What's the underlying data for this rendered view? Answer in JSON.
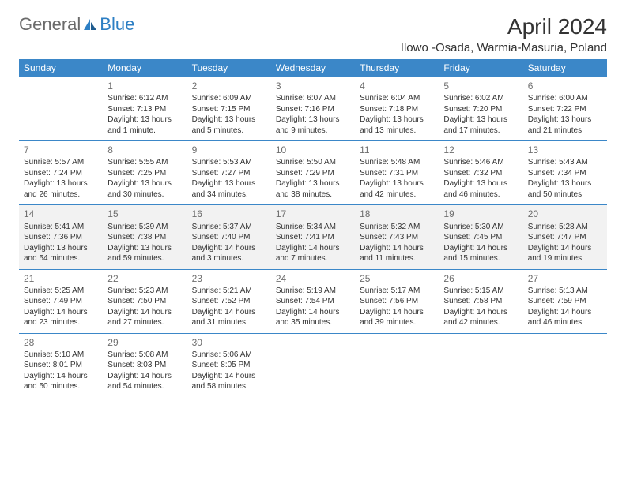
{
  "logo": {
    "general": "General",
    "blue": "Blue"
  },
  "title": "April 2024",
  "location": "Ilowo -Osada, Warmia-Masuria, Poland",
  "weekdays": [
    "Sunday",
    "Monday",
    "Tuesday",
    "Wednesday",
    "Thursday",
    "Friday",
    "Saturday"
  ],
  "colors": {
    "header_bg": "#3b87c8",
    "header_fg": "#ffffff",
    "logo_general": "#6b6b6b",
    "logo_blue": "#2d7fc4",
    "text": "#333333",
    "daynum": "#6e6e6e",
    "row_border": "#3b87c8",
    "shade": "#f2f2f2",
    "white": "#ffffff"
  },
  "weeks": [
    {
      "shaded": false,
      "days": [
        {
          "n": "",
          "lines": []
        },
        {
          "n": "1",
          "lines": [
            "Sunrise: 6:12 AM",
            "Sunset: 7:13 PM",
            "Daylight: 13 hours",
            "and 1 minute."
          ]
        },
        {
          "n": "2",
          "lines": [
            "Sunrise: 6:09 AM",
            "Sunset: 7:15 PM",
            "Daylight: 13 hours",
            "and 5 minutes."
          ]
        },
        {
          "n": "3",
          "lines": [
            "Sunrise: 6:07 AM",
            "Sunset: 7:16 PM",
            "Daylight: 13 hours",
            "and 9 minutes."
          ]
        },
        {
          "n": "4",
          "lines": [
            "Sunrise: 6:04 AM",
            "Sunset: 7:18 PM",
            "Daylight: 13 hours",
            "and 13 minutes."
          ]
        },
        {
          "n": "5",
          "lines": [
            "Sunrise: 6:02 AM",
            "Sunset: 7:20 PM",
            "Daylight: 13 hours",
            "and 17 minutes."
          ]
        },
        {
          "n": "6",
          "lines": [
            "Sunrise: 6:00 AM",
            "Sunset: 7:22 PM",
            "Daylight: 13 hours",
            "and 21 minutes."
          ]
        }
      ]
    },
    {
      "shaded": false,
      "days": [
        {
          "n": "7",
          "lines": [
            "Sunrise: 5:57 AM",
            "Sunset: 7:24 PM",
            "Daylight: 13 hours",
            "and 26 minutes."
          ]
        },
        {
          "n": "8",
          "lines": [
            "Sunrise: 5:55 AM",
            "Sunset: 7:25 PM",
            "Daylight: 13 hours",
            "and 30 minutes."
          ]
        },
        {
          "n": "9",
          "lines": [
            "Sunrise: 5:53 AM",
            "Sunset: 7:27 PM",
            "Daylight: 13 hours",
            "and 34 minutes."
          ]
        },
        {
          "n": "10",
          "lines": [
            "Sunrise: 5:50 AM",
            "Sunset: 7:29 PM",
            "Daylight: 13 hours",
            "and 38 minutes."
          ]
        },
        {
          "n": "11",
          "lines": [
            "Sunrise: 5:48 AM",
            "Sunset: 7:31 PM",
            "Daylight: 13 hours",
            "and 42 minutes."
          ]
        },
        {
          "n": "12",
          "lines": [
            "Sunrise: 5:46 AM",
            "Sunset: 7:32 PM",
            "Daylight: 13 hours",
            "and 46 minutes."
          ]
        },
        {
          "n": "13",
          "lines": [
            "Sunrise: 5:43 AM",
            "Sunset: 7:34 PM",
            "Daylight: 13 hours",
            "and 50 minutes."
          ]
        }
      ]
    },
    {
      "shaded": true,
      "days": [
        {
          "n": "14",
          "lines": [
            "Sunrise: 5:41 AM",
            "Sunset: 7:36 PM",
            "Daylight: 13 hours",
            "and 54 minutes."
          ]
        },
        {
          "n": "15",
          "lines": [
            "Sunrise: 5:39 AM",
            "Sunset: 7:38 PM",
            "Daylight: 13 hours",
            "and 59 minutes."
          ]
        },
        {
          "n": "16",
          "lines": [
            "Sunrise: 5:37 AM",
            "Sunset: 7:40 PM",
            "Daylight: 14 hours",
            "and 3 minutes."
          ]
        },
        {
          "n": "17",
          "lines": [
            "Sunrise: 5:34 AM",
            "Sunset: 7:41 PM",
            "Daylight: 14 hours",
            "and 7 minutes."
          ]
        },
        {
          "n": "18",
          "lines": [
            "Sunrise: 5:32 AM",
            "Sunset: 7:43 PM",
            "Daylight: 14 hours",
            "and 11 minutes."
          ]
        },
        {
          "n": "19",
          "lines": [
            "Sunrise: 5:30 AM",
            "Sunset: 7:45 PM",
            "Daylight: 14 hours",
            "and 15 minutes."
          ]
        },
        {
          "n": "20",
          "lines": [
            "Sunrise: 5:28 AM",
            "Sunset: 7:47 PM",
            "Daylight: 14 hours",
            "and 19 minutes."
          ]
        }
      ]
    },
    {
      "shaded": false,
      "days": [
        {
          "n": "21",
          "lines": [
            "Sunrise: 5:25 AM",
            "Sunset: 7:49 PM",
            "Daylight: 14 hours",
            "and 23 minutes."
          ]
        },
        {
          "n": "22",
          "lines": [
            "Sunrise: 5:23 AM",
            "Sunset: 7:50 PM",
            "Daylight: 14 hours",
            "and 27 minutes."
          ]
        },
        {
          "n": "23",
          "lines": [
            "Sunrise: 5:21 AM",
            "Sunset: 7:52 PM",
            "Daylight: 14 hours",
            "and 31 minutes."
          ]
        },
        {
          "n": "24",
          "lines": [
            "Sunrise: 5:19 AM",
            "Sunset: 7:54 PM",
            "Daylight: 14 hours",
            "and 35 minutes."
          ]
        },
        {
          "n": "25",
          "lines": [
            "Sunrise: 5:17 AM",
            "Sunset: 7:56 PM",
            "Daylight: 14 hours",
            "and 39 minutes."
          ]
        },
        {
          "n": "26",
          "lines": [
            "Sunrise: 5:15 AM",
            "Sunset: 7:58 PM",
            "Daylight: 14 hours",
            "and 42 minutes."
          ]
        },
        {
          "n": "27",
          "lines": [
            "Sunrise: 5:13 AM",
            "Sunset: 7:59 PM",
            "Daylight: 14 hours",
            "and 46 minutes."
          ]
        }
      ]
    },
    {
      "shaded": false,
      "days": [
        {
          "n": "28",
          "lines": [
            "Sunrise: 5:10 AM",
            "Sunset: 8:01 PM",
            "Daylight: 14 hours",
            "and 50 minutes."
          ]
        },
        {
          "n": "29",
          "lines": [
            "Sunrise: 5:08 AM",
            "Sunset: 8:03 PM",
            "Daylight: 14 hours",
            "and 54 minutes."
          ]
        },
        {
          "n": "30",
          "lines": [
            "Sunrise: 5:06 AM",
            "Sunset: 8:05 PM",
            "Daylight: 14 hours",
            "and 58 minutes."
          ]
        },
        {
          "n": "",
          "lines": []
        },
        {
          "n": "",
          "lines": []
        },
        {
          "n": "",
          "lines": []
        },
        {
          "n": "",
          "lines": []
        }
      ]
    }
  ]
}
